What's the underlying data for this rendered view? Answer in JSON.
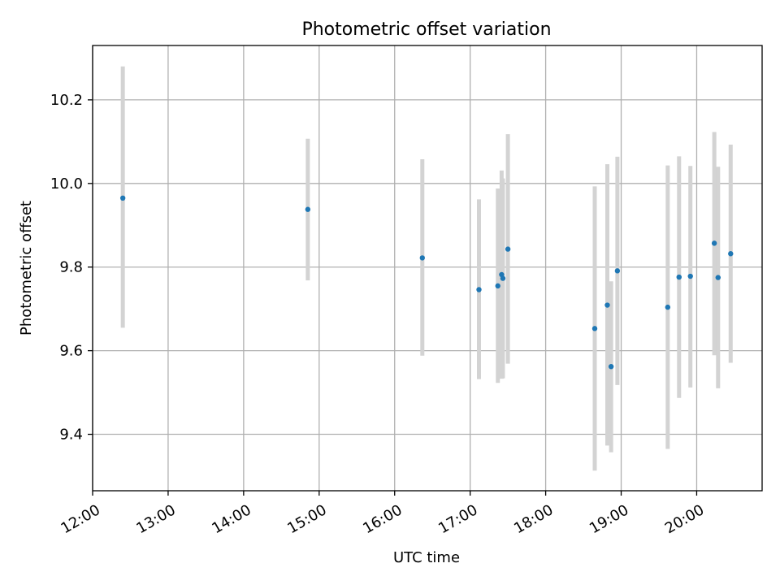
{
  "chart_data": {
    "type": "scatter",
    "title": "Photometric offset variation",
    "xlabel": "UTC time",
    "ylabel": "Photometric offset",
    "x_axis": {
      "scale": "time",
      "range": [
        "12:00",
        "20:52"
      ],
      "ticks": [
        "12:00",
        "13:00",
        "14:00",
        "15:00",
        "16:00",
        "17:00",
        "18:00",
        "19:00",
        "20:00"
      ]
    },
    "y_axis": {
      "range": [
        9.265,
        10.33
      ],
      "ticks": [
        9.4,
        9.6,
        9.8,
        10.0,
        10.2
      ],
      "tick_labels": [
        "9.4",
        "9.6",
        "9.8",
        "10.0",
        "10.2"
      ]
    },
    "grid": true,
    "marker_color": "#1f77b4",
    "errorbar_color": "#d3d3d3",
    "points": [
      {
        "time": "12:24",
        "y": 9.965,
        "yerr_low": 9.655,
        "yerr_high": 10.28
      },
      {
        "time": "14:51",
        "y": 9.938,
        "yerr_low": 9.768,
        "yerr_high": 10.107
      },
      {
        "time": "16:22",
        "y": 9.822,
        "yerr_low": 9.588,
        "yerr_high": 10.058
      },
      {
        "time": "17:07",
        "y": 9.746,
        "yerr_low": 9.532,
        "yerr_high": 9.962
      },
      {
        "time": "17:22",
        "y": 9.755,
        "yerr_low": 9.523,
        "yerr_high": 9.988
      },
      {
        "time": "17:25",
        "y": 9.782,
        "yerr_low": 9.533,
        "yerr_high": 10.031
      },
      {
        "time": "17:26",
        "y": 9.773,
        "yerr_low": 9.534,
        "yerr_high": 10.012
      },
      {
        "time": "17:30",
        "y": 9.843,
        "yerr_low": 9.569,
        "yerr_high": 10.118
      },
      {
        "time": "18:39",
        "y": 9.653,
        "yerr_low": 9.313,
        "yerr_high": 9.993
      },
      {
        "time": "18:49",
        "y": 9.709,
        "yerr_low": 9.373,
        "yerr_high": 10.046
      },
      {
        "time": "18:52",
        "y": 9.562,
        "yerr_low": 9.357,
        "yerr_high": 9.766
      },
      {
        "time": "18:57",
        "y": 9.791,
        "yerr_low": 9.518,
        "yerr_high": 10.064
      },
      {
        "time": "19:37",
        "y": 9.704,
        "yerr_low": 9.365,
        "yerr_high": 10.043
      },
      {
        "time": "19:46",
        "y": 9.776,
        "yerr_low": 9.487,
        "yerr_high": 10.065
      },
      {
        "time": "19:55",
        "y": 9.778,
        "yerr_low": 9.512,
        "yerr_high": 10.042
      },
      {
        "time": "20:14",
        "y": 9.857,
        "yerr_low": 9.589,
        "yerr_high": 10.123
      },
      {
        "time": "20:17",
        "y": 9.775,
        "yerr_low": 9.51,
        "yerr_high": 10.04
      },
      {
        "time": "20:27",
        "y": 9.832,
        "yerr_low": 9.571,
        "yerr_high": 10.093
      }
    ]
  }
}
